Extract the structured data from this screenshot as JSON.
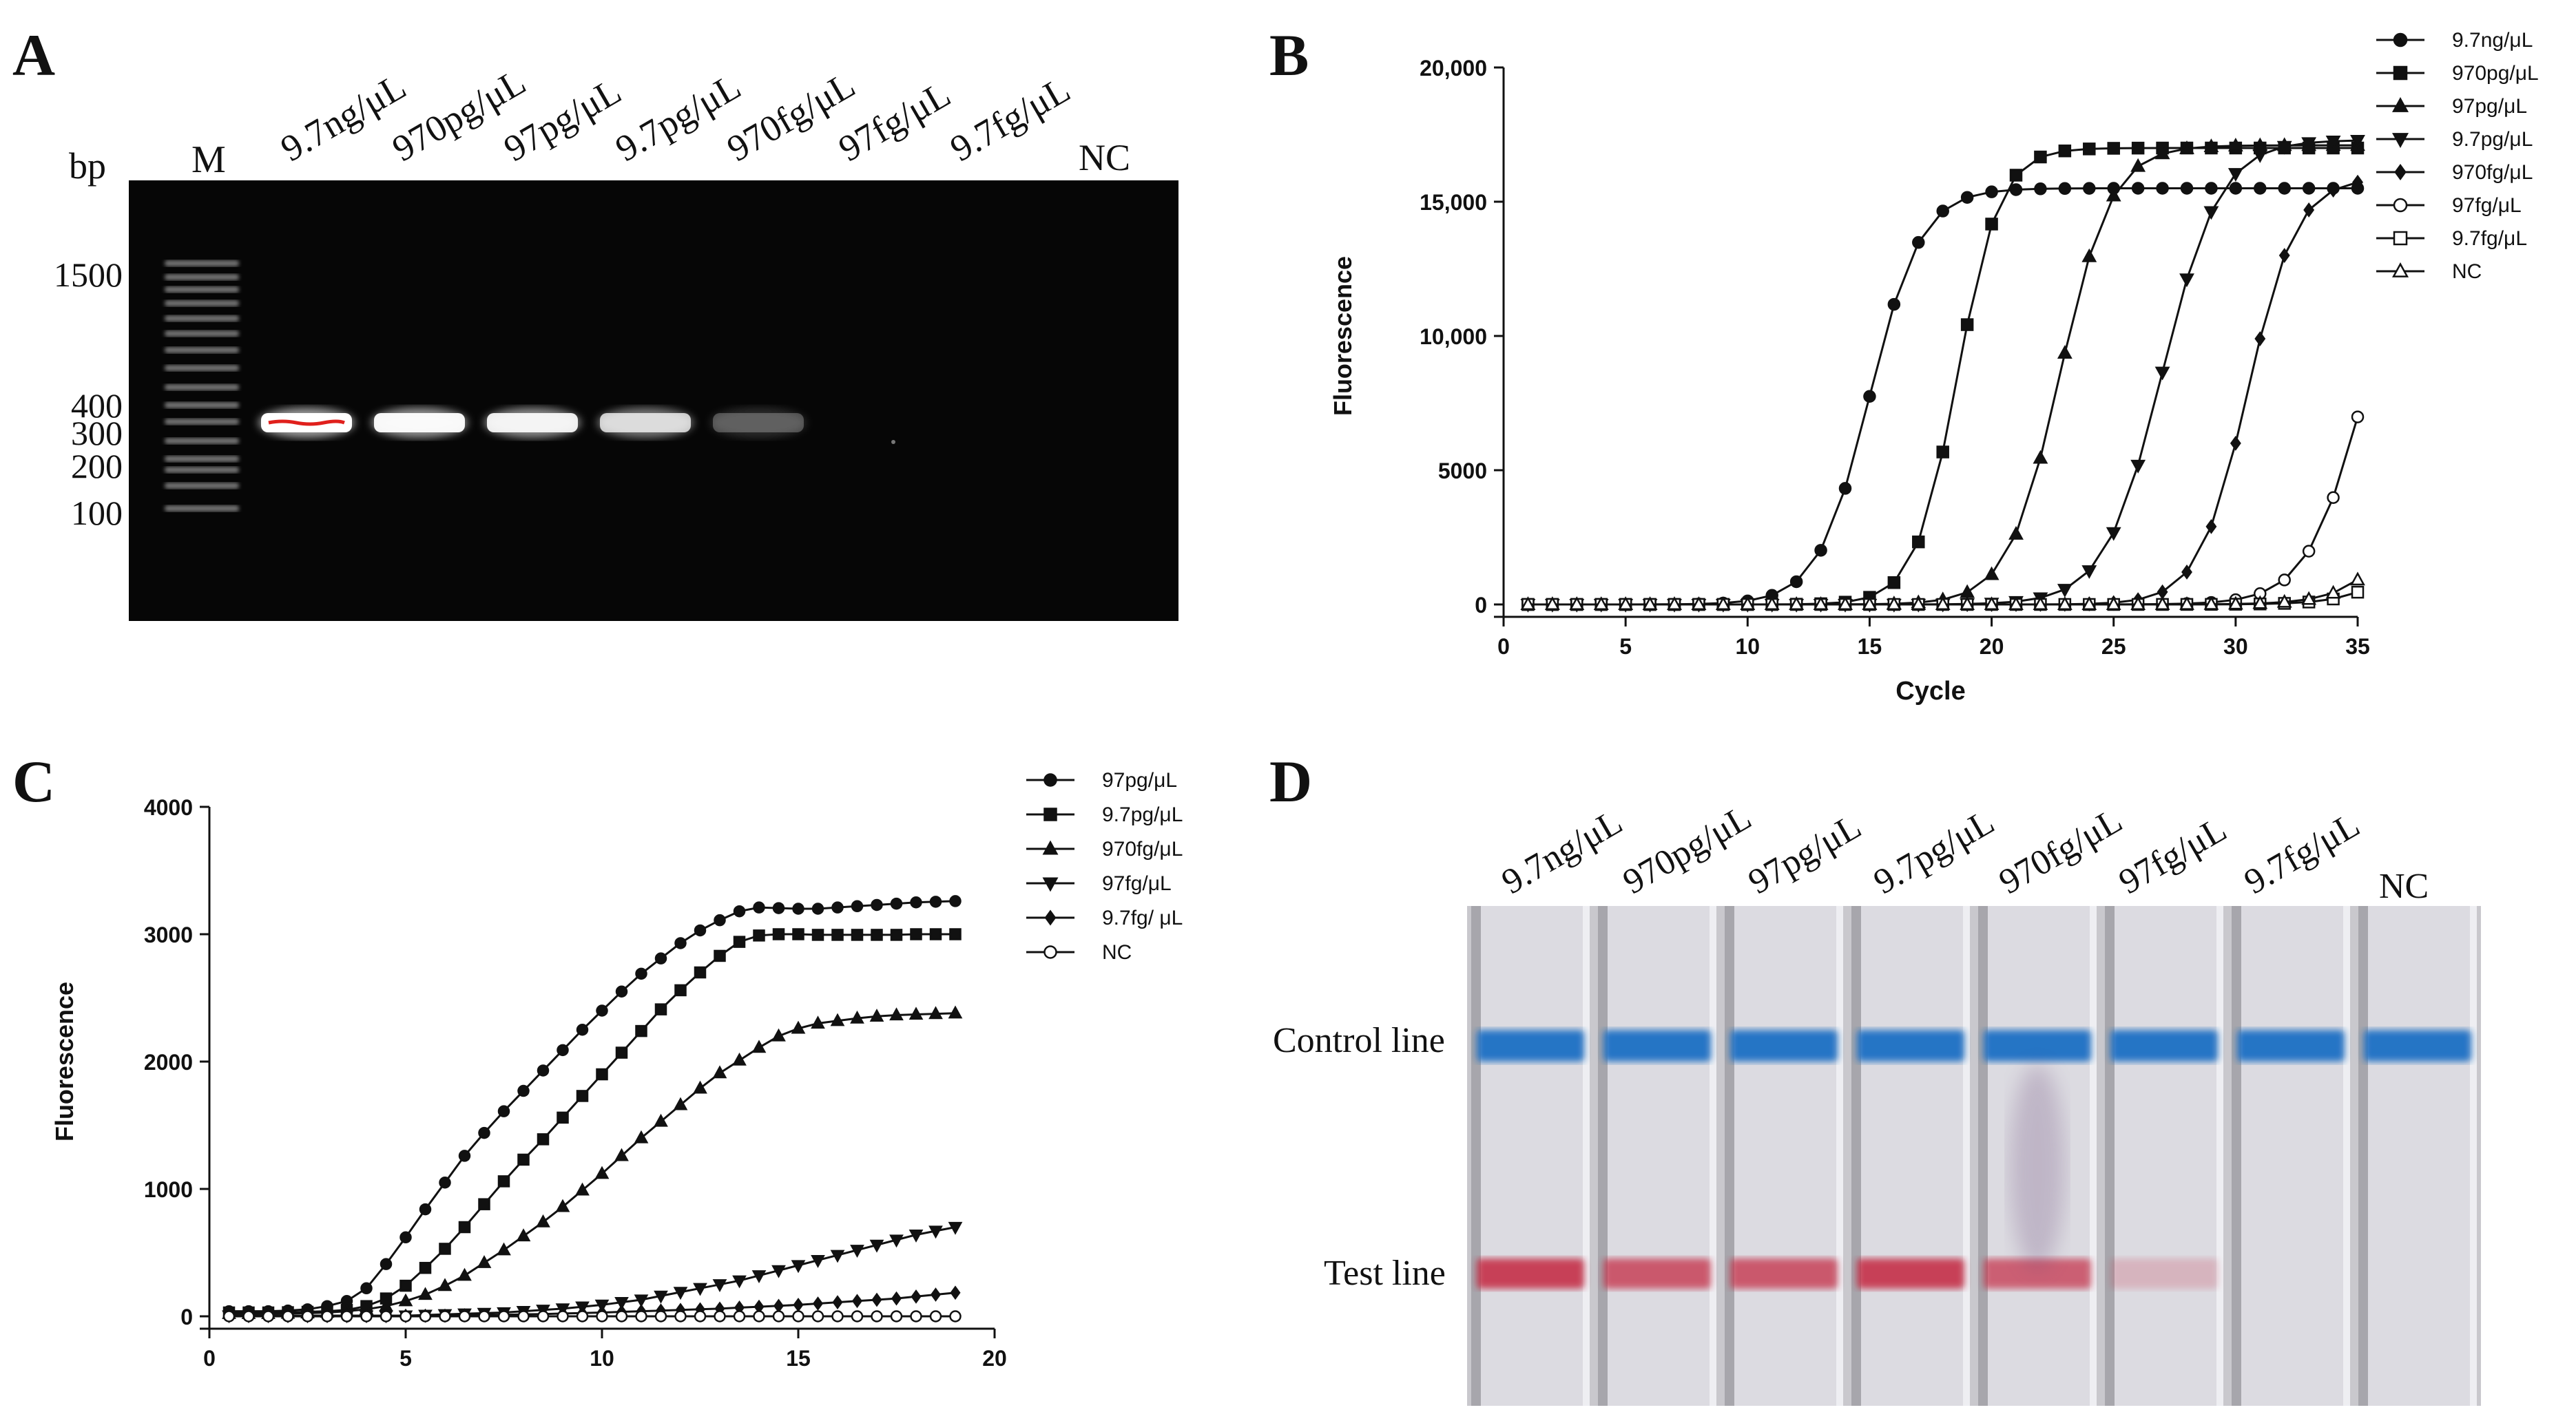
{
  "panels": {
    "A": {
      "label": "A",
      "marker_label": "M",
      "bp_label": "bp",
      "ladder_labels": [
        "1500",
        "400",
        "300",
        "200",
        "100"
      ],
      "lanes": [
        "9.7ng/μL",
        "970pg/μL",
        "97pg/μL",
        "9.7pg/μL",
        "970fg/μL",
        "97fg/μL",
        "9.7fg/μL",
        "NC"
      ],
      "band_intensity": [
        1.0,
        0.95,
        0.9,
        0.75,
        0.25,
        0,
        0,
        0
      ]
    },
    "B": {
      "label": "B"
    },
    "C": {
      "label": "C"
    },
    "D": {
      "label": "D",
      "lanes": [
        "9.7ng/μL",
        "970pg/μL",
        "97pg/μL",
        "9.7pg/μL",
        "970fg/μL",
        "97fg/μL",
        "9.7fg/μL",
        "NC"
      ],
      "control_line_label": "Control line",
      "test_line_label": "Test line",
      "test_line_intensity": [
        1.0,
        0.85,
        0.85,
        1.0,
        0.8,
        0.25,
        0,
        0
      ],
      "colors": {
        "control": "#1f6fc4",
        "test": "#c4283f",
        "strip": "#d8d6dc"
      }
    }
  },
  "chart_data": [
    {
      "panel": "B",
      "type": "line",
      "title": "",
      "xlabel": "Cycle",
      "ylabel": "Fluorescence",
      "xlim": [
        0,
        35
      ],
      "ylim": [
        0,
        20000
      ],
      "xticks": [
        0,
        5,
        10,
        15,
        20,
        25,
        30,
        35
      ],
      "yticks": [
        0,
        5000,
        10000,
        15000,
        20000
      ],
      "ytick_labels": [
        "0",
        "5000",
        "10,000",
        "15,000",
        "20,000"
      ],
      "legend_position": "top-right",
      "series": [
        {
          "name": "9.7ng/μL",
          "marker": "circle-filled",
          "model": {
            "base": 0,
            "top": 15500,
            "mid": 15,
            "k": 0.95
          }
        },
        {
          "name": "970pg/μL",
          "marker": "square-filled",
          "model": {
            "base": 0,
            "top": 17000,
            "mid": 18.6,
            "k": 1.15
          }
        },
        {
          "name": "97pg/μL",
          "marker": "triangle-up-filled",
          "model": {
            "base": 0,
            "top": 17100,
            "mid": 22.8,
            "k": 0.95
          }
        },
        {
          "name": "9.7pg/μL",
          "marker": "triangle-down-filled",
          "model": {
            "base": 0,
            "top": 17300,
            "mid": 27.0,
            "k": 0.85
          }
        },
        {
          "name": "970fg/μL",
          "marker": "diamond-filled",
          "model": {
            "base": 0,
            "top": 15900,
            "mid": 30.5,
            "k": 1.0
          }
        },
        {
          "name": "97fg/μL",
          "marker": "circle-open",
          "model": {
            "base": 0,
            "top": 16000,
            "mid": 35.3,
            "k": 0.85
          }
        },
        {
          "name": "9.7fg/μL",
          "marker": "square-open",
          "model": {
            "base": 0,
            "top": 16000,
            "mid": 39.3,
            "k": 0.82
          }
        },
        {
          "name": "NC",
          "marker": "triangle-up-open",
          "model": {
            "base": 0,
            "top": 16000,
            "mid": 38.5,
            "k": 0.8
          }
        }
      ],
      "x_start": 1,
      "x_end": 35,
      "x_step": 1
    },
    {
      "panel": "C",
      "type": "line",
      "title": "",
      "xlabel": "",
      "ylabel": "Fluorescence",
      "xlim": [
        0,
        20
      ],
      "ylim": [
        0,
        4000
      ],
      "xticks": [
        0,
        5,
        10,
        15,
        20
      ],
      "yticks": [
        0,
        1000,
        2000,
        3000,
        4000
      ],
      "ytick_labels": [
        "0",
        "1000",
        "2000",
        "3000",
        "4000"
      ],
      "legend_position": "top-right",
      "series": [
        {
          "name": "97pg/μL",
          "marker": "circle-filled",
          "values": [
            40,
            40,
            40,
            45,
            55,
            80,
            120,
            220,
            410,
            620,
            840,
            1050,
            1260,
            1440,
            1610,
            1770,
            1930,
            2090,
            2250,
            2400,
            2550,
            2690,
            2810,
            2930,
            3030,
            3110,
            3180,
            3210,
            3205,
            3200,
            3200,
            3210,
            3220,
            3230,
            3240,
            3250,
            3255,
            3260
          ]
        },
        {
          "name": "9.7pg/μL",
          "marker": "square-filled",
          "values": [
            30,
            30,
            30,
            32,
            35,
            40,
            50,
            80,
            140,
            240,
            380,
            530,
            700,
            880,
            1060,
            1230,
            1390,
            1560,
            1730,
            1900,
            2070,
            2240,
            2410,
            2560,
            2700,
            2830,
            2940,
            2990,
            3000,
            3000,
            2995,
            2995,
            2995,
            2995,
            2995,
            3000,
            3000,
            3000
          ]
        },
        {
          "name": "970fg/μL",
          "marker": "triangle-up-filled",
          "values": [
            20,
            20,
            20,
            22,
            25,
            30,
            40,
            55,
            80,
            120,
            170,
            240,
            320,
            420,
            520,
            630,
            740,
            860,
            990,
            1120,
            1260,
            1400,
            1530,
            1660,
            1790,
            1910,
            2010,
            2110,
            2200,
            2260,
            2300,
            2320,
            2340,
            2355,
            2365,
            2370,
            2375,
            2380
          ]
        },
        {
          "name": "97fg/μL",
          "marker": "triangle-down-filled",
          "values": [
            5,
            5,
            5,
            5,
            5,
            5,
            5,
            5,
            5,
            5,
            10,
            15,
            20,
            25,
            30,
            40,
            50,
            60,
            75,
            90,
            110,
            130,
            160,
            190,
            220,
            250,
            280,
            320,
            360,
            400,
            440,
            480,
            520,
            560,
            600,
            640,
            670,
            700
          ]
        },
        {
          "name": "9.7fg/ μL",
          "marker": "diamond-filled",
          "values": [
            5,
            5,
            5,
            5,
            5,
            5,
            5,
            5,
            5,
            5,
            5,
            5,
            8,
            10,
            12,
            15,
            18,
            22,
            26,
            30,
            35,
            40,
            45,
            50,
            55,
            60,
            68,
            75,
            82,
            90,
            100,
            110,
            120,
            130,
            140,
            155,
            170,
            185
          ]
        },
        {
          "name": "NC",
          "marker": "circle-open",
          "values": [
            0,
            0,
            0,
            0,
            0,
            0,
            0,
            0,
            0,
            0,
            0,
            0,
            0,
            0,
            0,
            0,
            0,
            0,
            0,
            0,
            0,
            0,
            0,
            0,
            0,
            0,
            0,
            0,
            0,
            0,
            0,
            0,
            0,
            0,
            0,
            0,
            0,
            0
          ]
        }
      ],
      "x_start": 0.5,
      "x_end": 19.5,
      "x_step": 0.5
    }
  ]
}
